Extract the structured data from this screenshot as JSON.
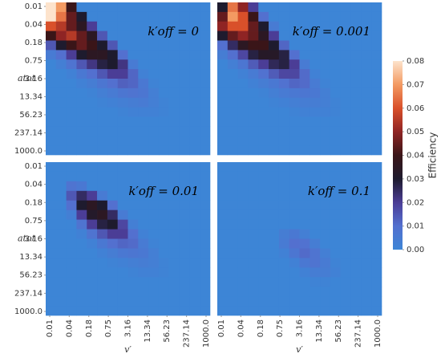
{
  "chart_data": [
    {
      "type": "heatmap",
      "title": "k′off = 0",
      "xscale": "log",
      "yscale": "log",
      "y_inverted": true,
      "xlim": [
        0.01,
        1000
      ],
      "ylim": [
        0.01,
        1000
      ],
      "ylabel": "atot",
      "yticks": [
        0.01,
        {
          "value": 0.042,
          "label": "0.04"
        },
        {
          "value": 0.178,
          "label": "0.18"
        },
        0.75,
        3.16,
        13.34,
        56.23,
        237.14,
        {
          "value": 1000,
          "label": "1000.0"
        }
      ],
      "z": [
        [
          0.08,
          0.07,
          0.04,
          0,
          0,
          0,
          0,
          0,
          0,
          0,
          0,
          0,
          0,
          0,
          0,
          0
        ],
        [
          0.08,
          0.065,
          0.045,
          0.03,
          0,
          0,
          0,
          0,
          0,
          0,
          0,
          0,
          0,
          0,
          0,
          0
        ],
        [
          0.06,
          0.055,
          0.045,
          0.035,
          0.02,
          0,
          0,
          0,
          0,
          0,
          0,
          0,
          0,
          0,
          0,
          0
        ],
        [
          0.04,
          0.05,
          0.055,
          0.045,
          0.035,
          0.015,
          0,
          0,
          0,
          0,
          0,
          0,
          0,
          0,
          0,
          0
        ],
        [
          0.015,
          0.03,
          0.04,
          0.045,
          0.04,
          0.03,
          0.015,
          0,
          0,
          0,
          0,
          0,
          0,
          0,
          0,
          0
        ],
        [
          0.005,
          0.01,
          0.02,
          0.03,
          0.035,
          0.035,
          0.03,
          0.01,
          0,
          0,
          0,
          0,
          0,
          0,
          0,
          0
        ],
        [
          0,
          0.003,
          0.008,
          0.015,
          0.022,
          0.028,
          0.03,
          0.022,
          0.005,
          0,
          0,
          0,
          0,
          0,
          0,
          0
        ],
        [
          0,
          0,
          0.002,
          0.006,
          0.01,
          0.015,
          0.02,
          0.02,
          0.012,
          0.002,
          0,
          0,
          0,
          0,
          0,
          0
        ],
        [
          0,
          0,
          0,
          0.002,
          0.004,
          0.007,
          0.01,
          0.013,
          0.012,
          0.006,
          0.001,
          0,
          0,
          0,
          0,
          0
        ],
        [
          0,
          0,
          0,
          0,
          0.001,
          0.003,
          0.005,
          0.007,
          0.008,
          0.007,
          0.003,
          0,
          0,
          0,
          0,
          0
        ],
        [
          0,
          0,
          0,
          0,
          0,
          0.001,
          0.002,
          0.003,
          0.004,
          0.005,
          0.003,
          0.001,
          0,
          0,
          0,
          0
        ],
        [
          0,
          0,
          0,
          0,
          0,
          0,
          0,
          0.001,
          0.002,
          0.002,
          0.002,
          0.001,
          0,
          0,
          0,
          0
        ],
        [
          0,
          0,
          0,
          0,
          0,
          0,
          0,
          0,
          0,
          0,
          0,
          0,
          0,
          0,
          0,
          0
        ],
        [
          0,
          0,
          0,
          0,
          0,
          0,
          0,
          0,
          0,
          0,
          0,
          0,
          0,
          0,
          0,
          0
        ],
        [
          0,
          0,
          0,
          0,
          0,
          0,
          0,
          0,
          0,
          0,
          0,
          0,
          0,
          0,
          0,
          0
        ],
        [
          0,
          0,
          0,
          0,
          0,
          0,
          0,
          0,
          0,
          0,
          0,
          0,
          0,
          0,
          0,
          0
        ]
      ]
    },
    {
      "type": "heatmap",
      "title": "k′off = 0.001",
      "xscale": "log",
      "yscale": "log",
      "y_inverted": true,
      "xlim": [
        0.01,
        1000
      ],
      "ylim": [
        0.01,
        1000
      ],
      "z": [
        [
          0.03,
          0.065,
          0.05,
          0.02,
          0,
          0,
          0,
          0,
          0,
          0,
          0,
          0,
          0,
          0,
          0,
          0
        ],
        [
          0.045,
          0.07,
          0.06,
          0.04,
          0.01,
          0,
          0,
          0,
          0,
          0,
          0,
          0,
          0,
          0,
          0,
          0
        ],
        [
          0.05,
          0.06,
          0.06,
          0.045,
          0.03,
          0.005,
          0,
          0,
          0,
          0,
          0,
          0,
          0,
          0,
          0,
          0
        ],
        [
          0.03,
          0.045,
          0.05,
          0.045,
          0.035,
          0.02,
          0,
          0,
          0,
          0,
          0,
          0,
          0,
          0,
          0,
          0
        ],
        [
          0.01,
          0.025,
          0.035,
          0.04,
          0.04,
          0.03,
          0.012,
          0,
          0,
          0,
          0,
          0,
          0,
          0,
          0,
          0
        ],
        [
          0.004,
          0.01,
          0.018,
          0.028,
          0.033,
          0.033,
          0.028,
          0.01,
          0,
          0,
          0,
          0,
          0,
          0,
          0,
          0
        ],
        [
          0,
          0.003,
          0.007,
          0.014,
          0.02,
          0.026,
          0.028,
          0.02,
          0.005,
          0,
          0,
          0,
          0,
          0,
          0,
          0
        ],
        [
          0,
          0,
          0.002,
          0.005,
          0.009,
          0.014,
          0.018,
          0.018,
          0.011,
          0.002,
          0,
          0,
          0,
          0,
          0,
          0
        ],
        [
          0,
          0,
          0,
          0.002,
          0.004,
          0.006,
          0.009,
          0.012,
          0.011,
          0.005,
          0.001,
          0,
          0,
          0,
          0,
          0
        ],
        [
          0,
          0,
          0,
          0,
          0.001,
          0.003,
          0.005,
          0.006,
          0.007,
          0.006,
          0.003,
          0,
          0,
          0,
          0,
          0
        ],
        [
          0,
          0,
          0,
          0,
          0,
          0.001,
          0.002,
          0.003,
          0.004,
          0.004,
          0.003,
          0.001,
          0,
          0,
          0,
          0
        ],
        [
          0,
          0,
          0,
          0,
          0,
          0,
          0,
          0.001,
          0.002,
          0.002,
          0.002,
          0.001,
          0,
          0,
          0,
          0
        ],
        [
          0,
          0,
          0,
          0,
          0,
          0,
          0,
          0,
          0,
          0,
          0,
          0,
          0,
          0,
          0,
          0
        ],
        [
          0,
          0,
          0,
          0,
          0,
          0,
          0,
          0,
          0,
          0,
          0,
          0,
          0,
          0,
          0,
          0
        ],
        [
          0,
          0,
          0,
          0,
          0,
          0,
          0,
          0,
          0,
          0,
          0,
          0,
          0,
          0,
          0,
          0
        ],
        [
          0,
          0,
          0,
          0,
          0,
          0,
          0,
          0,
          0,
          0,
          0,
          0,
          0,
          0,
          0,
          0
        ]
      ]
    },
    {
      "type": "heatmap",
      "title": "k′off = 0.01",
      "xscale": "log",
      "yscale": "log",
      "y_inverted": true,
      "xlim": [
        0.01,
        1000
      ],
      "ylim": [
        0.01,
        1000
      ],
      "xlabel": "v′",
      "ylabel": "atot",
      "xticks": [
        0.01,
        {
          "value": 0.042,
          "label": "0.04"
        },
        {
          "value": 0.178,
          "label": "0.18"
        },
        0.75,
        3.16,
        13.34,
        56.23,
        237.14,
        {
          "value": 1000,
          "label": "1000.0"
        }
      ],
      "yticks": [
        0.01,
        {
          "value": 0.042,
          "label": "0.04"
        },
        {
          "value": 0.178,
          "label": "0.18"
        },
        0.75,
        3.16,
        13.34,
        56.23,
        237.14,
        {
          "value": 1000,
          "label": "1000.0"
        }
      ],
      "z": [
        [
          0,
          0,
          0,
          0,
          0,
          0,
          0,
          0,
          0,
          0,
          0,
          0,
          0,
          0,
          0,
          0
        ],
        [
          0,
          0,
          0,
          0,
          0,
          0,
          0,
          0,
          0,
          0,
          0,
          0,
          0,
          0,
          0,
          0
        ],
        [
          0,
          0,
          0.008,
          0.006,
          0,
          0,
          0,
          0,
          0,
          0,
          0,
          0,
          0,
          0,
          0,
          0
        ],
        [
          0,
          0,
          0.015,
          0.025,
          0.02,
          0.005,
          0,
          0,
          0,
          0,
          0,
          0,
          0,
          0,
          0,
          0
        ],
        [
          0,
          0,
          0.01,
          0.03,
          0.035,
          0.03,
          0.01,
          0,
          0,
          0,
          0,
          0,
          0,
          0,
          0,
          0
        ],
        [
          0,
          0,
          0.003,
          0.02,
          0.032,
          0.035,
          0.025,
          0.005,
          0,
          0,
          0,
          0,
          0,
          0,
          0,
          0
        ],
        [
          0,
          0,
          0,
          0.008,
          0.02,
          0.028,
          0.03,
          0.018,
          0.003,
          0,
          0,
          0,
          0,
          0,
          0,
          0
        ],
        [
          0,
          0,
          0,
          0.002,
          0.008,
          0.015,
          0.02,
          0.02,
          0.01,
          0.002,
          0,
          0,
          0,
          0,
          0,
          0
        ],
        [
          0,
          0,
          0,
          0,
          0.002,
          0.006,
          0.01,
          0.012,
          0.011,
          0.005,
          0.001,
          0,
          0,
          0,
          0,
          0
        ],
        [
          0,
          0,
          0,
          0,
          0,
          0.002,
          0.004,
          0.006,
          0.007,
          0.006,
          0.003,
          0,
          0,
          0,
          0,
          0
        ],
        [
          0,
          0,
          0,
          0,
          0,
          0,
          0.001,
          0.002,
          0.003,
          0.004,
          0.003,
          0.001,
          0,
          0,
          0,
          0
        ],
        [
          0,
          0,
          0,
          0,
          0,
          0,
          0,
          0,
          0.001,
          0.002,
          0.002,
          0.001,
          0,
          0,
          0,
          0
        ],
        [
          0,
          0,
          0,
          0,
          0,
          0,
          0,
          0,
          0,
          0,
          0,
          0,
          0,
          0,
          0,
          0
        ],
        [
          0,
          0,
          0,
          0,
          0,
          0,
          0,
          0,
          0,
          0,
          0,
          0,
          0,
          0,
          0,
          0
        ],
        [
          0,
          0,
          0,
          0,
          0,
          0,
          0,
          0,
          0,
          0,
          0,
          0,
          0,
          0,
          0,
          0
        ],
        [
          0,
          0,
          0,
          0,
          0,
          0,
          0,
          0,
          0,
          0,
          0,
          0,
          0,
          0,
          0,
          0
        ]
      ]
    },
    {
      "type": "heatmap",
      "title": "k′off = 0.1",
      "xscale": "log",
      "yscale": "log",
      "y_inverted": true,
      "xlim": [
        0.01,
        1000
      ],
      "ylim": [
        0.01,
        1000
      ],
      "xlabel": "v′",
      "xticks": [
        0.01,
        {
          "value": 0.042,
          "label": "0.04"
        },
        {
          "value": 0.178,
          "label": "0.18"
        },
        0.75,
        3.16,
        13.34,
        56.23,
        237.14,
        {
          "value": 1000,
          "label": "1000.0"
        }
      ],
      "z": [
        [
          0,
          0,
          0,
          0,
          0,
          0,
          0,
          0,
          0,
          0,
          0,
          0,
          0,
          0,
          0,
          0
        ],
        [
          0,
          0,
          0,
          0,
          0,
          0,
          0,
          0,
          0,
          0,
          0,
          0,
          0,
          0,
          0,
          0
        ],
        [
          0,
          0,
          0,
          0,
          0,
          0,
          0,
          0,
          0,
          0,
          0,
          0,
          0,
          0,
          0,
          0
        ],
        [
          0,
          0,
          0,
          0,
          0,
          0,
          0,
          0,
          0,
          0,
          0,
          0,
          0,
          0,
          0,
          0
        ],
        [
          0,
          0,
          0,
          0,
          0,
          0,
          0,
          0,
          0,
          0,
          0,
          0,
          0,
          0,
          0,
          0
        ],
        [
          0,
          0,
          0,
          0,
          0,
          0,
          0,
          0,
          0,
          0,
          0,
          0,
          0,
          0,
          0,
          0
        ],
        [
          0,
          0,
          0,
          0,
          0,
          0,
          0,
          0,
          0,
          0,
          0,
          0,
          0,
          0,
          0,
          0
        ],
        [
          0,
          0,
          0,
          0,
          0,
          0,
          0.004,
          0.006,
          0.003,
          0,
          0,
          0,
          0,
          0,
          0,
          0
        ],
        [
          0,
          0,
          0,
          0,
          0,
          0,
          0.005,
          0.01,
          0.009,
          0.004,
          0,
          0,
          0,
          0,
          0,
          0
        ],
        [
          0,
          0,
          0,
          0,
          0,
          0,
          0.002,
          0.007,
          0.011,
          0.008,
          0.003,
          0,
          0,
          0,
          0,
          0
        ],
        [
          0,
          0,
          0,
          0,
          0,
          0,
          0,
          0.002,
          0.006,
          0.008,
          0.005,
          0.001,
          0,
          0,
          0,
          0
        ],
        [
          0,
          0,
          0,
          0,
          0,
          0,
          0,
          0,
          0.002,
          0.004,
          0.004,
          0.002,
          0,
          0,
          0,
          0
        ],
        [
          0,
          0,
          0,
          0,
          0,
          0,
          0,
          0,
          0,
          0.001,
          0.001,
          0,
          0,
          0,
          0,
          0
        ],
        [
          0,
          0,
          0,
          0,
          0,
          0,
          0,
          0,
          0,
          0,
          0,
          0,
          0,
          0,
          0,
          0
        ],
        [
          0,
          0,
          0,
          0,
          0,
          0,
          0,
          0,
          0,
          0,
          0,
          0,
          0,
          0,
          0,
          0
        ],
        [
          0,
          0,
          0,
          0,
          0,
          0,
          0,
          0,
          0,
          0,
          0,
          0,
          0,
          0,
          0,
          0
        ]
      ]
    }
  ],
  "colorbar": {
    "label": "Efficiency",
    "lim": [
      0,
      0.08
    ],
    "ticks": [
      {
        "value": 0,
        "label": "0.00"
      },
      {
        "value": 0.01,
        "label": "0.01"
      },
      {
        "value": 0.02,
        "label": "0.02"
      },
      {
        "value": 0.03,
        "label": "0.03"
      },
      {
        "value": 0.04,
        "label": "0.04"
      },
      {
        "value": 0.05,
        "label": "0.05"
      },
      {
        "value": 0.06,
        "label": "0.06"
      },
      {
        "value": 0.07,
        "label": "0.07"
      },
      {
        "value": 0.08,
        "label": "0.08"
      }
    ],
    "colors": [
      "#3d85d6",
      "#5370cf",
      "#4b3d96",
      "#1e1b2e",
      "#3a1518",
      "#8f2424",
      "#d9502a",
      "#f39a62",
      "#fde3cc"
    ]
  }
}
